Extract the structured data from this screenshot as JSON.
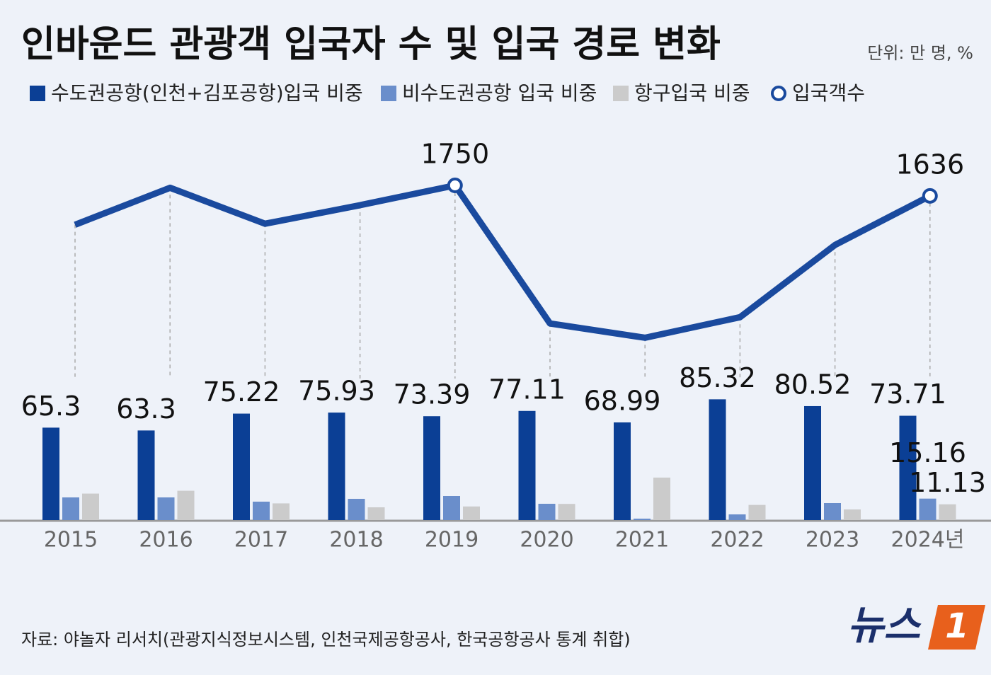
{
  "chart_data": {
    "type": "bar-line",
    "title": "인바운드 관광객 입국자 수 및 입국 경로 변화",
    "unit": "단위: 만 명, %",
    "categories": [
      "2015",
      "2016",
      "2017",
      "2018",
      "2019",
      "2020",
      "2021",
      "2022",
      "2023",
      "2024년"
    ],
    "series": [
      {
        "name": "수도권공항(인천+김포공항)입국 비중",
        "color": "#0b3f95",
        "kind": "bar",
        "values": [
          65.3,
          63.3,
          75.22,
          75.93,
          73.39,
          77.11,
          68.99,
          85.32,
          80.52,
          73.71
        ]
      },
      {
        "name": "비수도권공항 입국 비중",
        "color": "#6a8ecb",
        "kind": "bar",
        "values": [
          16,
          16,
          13,
          15,
          17,
          11.5,
          1,
          4,
          12,
          15.16
        ],
        "value_labels": [
          null,
          null,
          null,
          null,
          null,
          null,
          null,
          null,
          null,
          "15.16"
        ]
      },
      {
        "name": "항구입국 비중",
        "color": "#cbcbcb",
        "kind": "bar",
        "values": [
          18.7,
          20.7,
          11.78,
          9,
          9.6,
          11.4,
          30,
          10.7,
          7.5,
          11.13
        ],
        "value_labels": [
          null,
          null,
          null,
          null,
          null,
          null,
          null,
          null,
          null,
          "11.13"
        ]
      },
      {
        "name": "입국객수",
        "color": "#1a4a9e",
        "kind": "line",
        "values": [
          1323,
          1724,
          1334,
          1535,
          1750,
          252,
          97,
          320,
          1103,
          1636
        ],
        "value_labels": [
          null,
          null,
          null,
          null,
          "1750",
          null,
          null,
          null,
          null,
          "1636"
        ]
      }
    ],
    "source": "자료: 야놀자 리서치(관광지식정보시스템, 인천국제공항공사, 한국공항공사 통계 취합)",
    "logo": {
      "text": "뉴스",
      "number": "1"
    }
  }
}
